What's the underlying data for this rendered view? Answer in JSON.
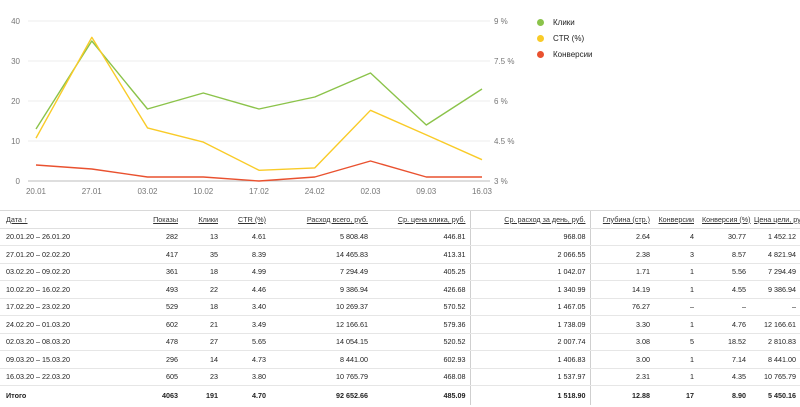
{
  "chart_data": {
    "type": "line",
    "categories": [
      "20.01",
      "27.01",
      "03.02",
      "10.02",
      "17.02",
      "24.02",
      "02.03",
      "09.03",
      "16.03"
    ],
    "left_axis": {
      "ticks": [
        0,
        10,
        20,
        30,
        40
      ],
      "labels": [
        "0",
        "10",
        "20",
        "30",
        "40"
      ],
      "ylim": [
        0,
        40
      ]
    },
    "right_axis": {
      "ticks": [
        3,
        4.5,
        6,
        7.5,
        9
      ],
      "labels": [
        "3 %",
        "4.5 %",
        "6 %",
        "7.5 %",
        "9 %"
      ],
      "ylim": [
        3,
        9
      ]
    },
    "grid": true,
    "legend_position": "top-right",
    "series": [
      {
        "name": "Клики",
        "axis": "left",
        "color": "#8bc34a",
        "values": [
          13,
          35,
          18,
          22,
          18,
          21,
          27,
          14,
          23
        ]
      },
      {
        "name": "CTR (%)",
        "axis": "right",
        "color": "#f9cb28",
        "values": [
          4.61,
          8.39,
          4.99,
          4.46,
          3.4,
          3.49,
          5.65,
          4.73,
          3.8
        ]
      },
      {
        "name": "Конверсии",
        "axis": "left",
        "color": "#e9512f",
        "values": [
          4,
          3,
          1,
          1,
          0,
          1,
          5,
          1,
          1
        ]
      }
    ]
  },
  "table": {
    "headers": [
      "Дата ↑",
      "Показы",
      "Клики",
      "CTR (%)",
      "Расход всего, руб.",
      "Ср. цена клика, руб.",
      "Ср. расход за день, руб.",
      "Глубина (стр.)",
      "Конверсии",
      "Конверсия (%)",
      "Цена цели, руб."
    ],
    "rows": [
      [
        "20.01.20 – 26.01.20",
        "282",
        "13",
        "4.61",
        "5 808.48",
        "446.81",
        "968.08",
        "2.64",
        "4",
        "30.77",
        "1 452.12"
      ],
      [
        "27.01.20 – 02.02.20",
        "417",
        "35",
        "8.39",
        "14 465.83",
        "413.31",
        "2 066.55",
        "2.38",
        "3",
        "8.57",
        "4 821.94"
      ],
      [
        "03.02.20 – 09.02.20",
        "361",
        "18",
        "4.99",
        "7 294.49",
        "405.25",
        "1 042.07",
        "1.71",
        "1",
        "5.56",
        "7 294.49"
      ],
      [
        "10.02.20 – 16.02.20",
        "493",
        "22",
        "4.46",
        "9 386.94",
        "426.68",
        "1 340.99",
        "14.19",
        "1",
        "4.55",
        "9 386.94"
      ],
      [
        "17.02.20 – 23.02.20",
        "529",
        "18",
        "3.40",
        "10 269.37",
        "570.52",
        "1 467.05",
        "76.27",
        "–",
        "–",
        "–"
      ],
      [
        "24.02.20 – 01.03.20",
        "602",
        "21",
        "3.49",
        "12 166.61",
        "579.36",
        "1 738.09",
        "3.30",
        "1",
        "4.76",
        "12 166.61"
      ],
      [
        "02.03.20 – 08.03.20",
        "478",
        "27",
        "5.65",
        "14 054.15",
        "520.52",
        "2 007.74",
        "3.08",
        "5",
        "18.52",
        "2 810.83"
      ],
      [
        "09.03.20 – 15.03.20",
        "296",
        "14",
        "4.73",
        "8 441.00",
        "602.93",
        "1 406.83",
        "3.00",
        "1",
        "7.14",
        "8 441.00"
      ],
      [
        "16.03.20 – 22.03.20",
        "605",
        "23",
        "3.80",
        "10 765.79",
        "468.08",
        "1 537.97",
        "2.31",
        "1",
        "4.35",
        "10 765.79"
      ]
    ],
    "total": [
      "Итого",
      "4063",
      "191",
      "4.70",
      "92 652.66",
      "485.09",
      "1 518.90",
      "12.88",
      "17",
      "8.90",
      "5 450.16"
    ]
  }
}
